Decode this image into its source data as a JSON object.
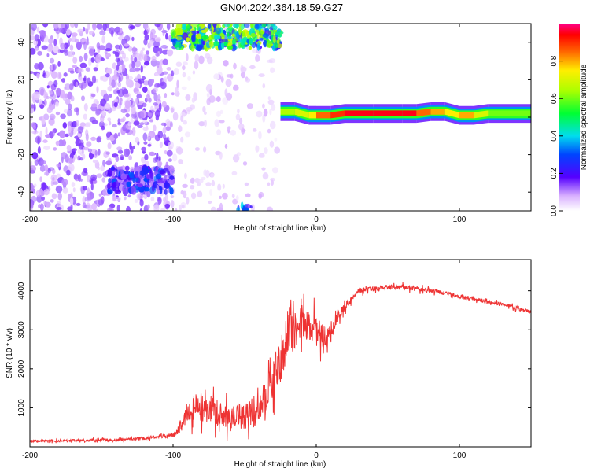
{
  "figure_title": "GN04.2024.364.18.59.G27",
  "colorbar": {
    "label": "Normalized spectral amplitude",
    "range": [
      0.0,
      1.0
    ],
    "ticks": [
      0.0,
      0.2,
      0.4,
      0.6,
      0.8
    ],
    "tick_labels": [
      "0.0",
      "0.2",
      "0.4",
      "0.6",
      "0.8"
    ]
  },
  "chart_data": [
    {
      "type": "heatmap",
      "name": "spectrogram",
      "xlabel": "Height of straight line (km)",
      "ylabel": "Frequency (Hz)",
      "xlim": [
        -200,
        150
      ],
      "ylim": [
        -50,
        50
      ],
      "xticks": [
        -200,
        -100,
        0,
        100
      ],
      "yticks": [
        -40,
        -20,
        0,
        20,
        40
      ],
      "xtick_labels": [
        "-200",
        "-100",
        "0",
        "100"
      ],
      "ytick_labels": [
        "-40",
        "-20",
        "0",
        "20",
        "40"
      ],
      "regions": [
        {
          "name": "noise-scatter",
          "x": [
            -200,
            -100
          ],
          "y": [
            -50,
            50
          ],
          "amplitude": 0.1
        },
        {
          "name": "noise-scatter-sparse",
          "x": [
            -100,
            -25
          ],
          "y": [
            -50,
            50
          ],
          "amplitude": 0.05
        },
        {
          "name": "upper-mirror-signal",
          "x": [
            -100,
            -25
          ],
          "y": [
            37,
            50
          ],
          "amplitude": 0.45
        },
        {
          "name": "lower-noise-cluster",
          "x": [
            -145,
            -100
          ],
          "y": [
            -40,
            -27
          ],
          "amplitude": 0.2
        },
        {
          "name": "lower-edge-blob",
          "x": [
            -55,
            -45
          ],
          "y": [
            -50,
            -47
          ],
          "amplitude": 0.25
        }
      ],
      "signal_track": {
        "x": [
          -25,
          -15,
          -5,
          0,
          10,
          20,
          40,
          60,
          70,
          80,
          90,
          100,
          110,
          120,
          150
        ],
        "y": [
          3,
          3,
          1,
          1,
          1,
          2,
          2,
          2,
          2,
          3,
          3,
          1,
          1,
          2,
          2
        ],
        "amplitude": [
          0.65,
          0.7,
          0.75,
          0.85,
          0.9,
          0.95,
          0.95,
          0.95,
          0.85,
          0.8,
          0.75,
          0.8,
          0.7,
          0.6,
          0.55
        ]
      }
    },
    {
      "type": "line",
      "name": "snr",
      "xlabel": "Height of straight line (km)",
      "ylabel": "SNR (10 * v/v)",
      "xlim": [
        -200,
        150
      ],
      "ylim": [
        0,
        4800
      ],
      "xticks": [
        -200,
        -100,
        0,
        100
      ],
      "yticks": [
        1000,
        2000,
        3000,
        4000
      ],
      "xtick_labels": [
        "-200",
        "-100",
        "0",
        "100"
      ],
      "ytick_labels": [
        "1000",
        "2000",
        "3000",
        "4000"
      ],
      "color": "#ee3333",
      "series": [
        {
          "name": "SNR",
          "x": [
            -200,
            -180,
            -160,
            -140,
            -120,
            -110,
            -100,
            -95,
            -90,
            -85,
            -80,
            -75,
            -70,
            -65,
            -60,
            -55,
            -50,
            -45,
            -40,
            -35,
            -30,
            -25,
            -20,
            -15,
            -10,
            -5,
            0,
            5,
            10,
            15,
            20,
            25,
            30,
            40,
            50,
            60,
            70,
            80,
            90,
            100,
            110,
            120,
            130,
            140,
            150
          ],
          "y": [
            150,
            160,
            170,
            180,
            220,
            260,
            300,
            500,
            900,
            1000,
            1000,
            1000,
            900,
            800,
            700,
            800,
            800,
            850,
            1000,
            1300,
            1800,
            2200,
            2900,
            3000,
            3200,
            3100,
            3000,
            2800,
            2900,
            3300,
            3600,
            3800,
            4000,
            4050,
            4100,
            4100,
            4050,
            4000,
            3950,
            3850,
            3800,
            3700,
            3650,
            3550,
            3450
          ],
          "spread": [
            60,
            60,
            60,
            70,
            80,
            90,
            120,
            300,
            500,
            700,
            800,
            700,
            700,
            600,
            600,
            700,
            700,
            800,
            800,
            900,
            1000,
            1100,
            1200,
            1000,
            900,
            800,
            700,
            600,
            500,
            300,
            200,
            150,
            150,
            120,
            120,
            120,
            120,
            110,
            110,
            110,
            110,
            100,
            100,
            100,
            100
          ]
        }
      ]
    }
  ]
}
